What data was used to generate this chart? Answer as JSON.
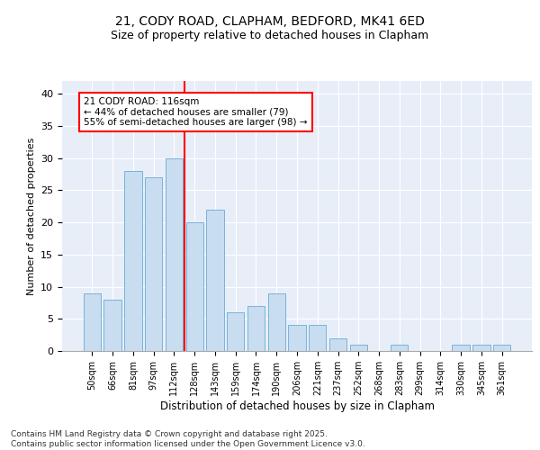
{
  "title1": "21, CODY ROAD, CLAPHAM, BEDFORD, MK41 6ED",
  "title2": "Size of property relative to detached houses in Clapham",
  "xlabel": "Distribution of detached houses by size in Clapham",
  "ylabel": "Number of detached properties",
  "categories": [
    "50sqm",
    "66sqm",
    "81sqm",
    "97sqm",
    "112sqm",
    "128sqm",
    "143sqm",
    "159sqm",
    "174sqm",
    "190sqm",
    "206sqm",
    "221sqm",
    "237sqm",
    "252sqm",
    "268sqm",
    "283sqm",
    "299sqm",
    "314sqm",
    "330sqm",
    "345sqm",
    "361sqm"
  ],
  "values": [
    9,
    8,
    28,
    27,
    30,
    20,
    22,
    6,
    7,
    9,
    4,
    4,
    2,
    1,
    0,
    1,
    0,
    0,
    1,
    1,
    1
  ],
  "bar_color": "#c9ddf0",
  "bar_edge_color": "#6aaad4",
  "vline_x": 4.5,
  "vline_color": "red",
  "annotation_text": "21 CODY ROAD: 116sqm\n← 44% of detached houses are smaller (79)\n55% of semi-detached houses are larger (98) →",
  "annotation_box_color": "white",
  "annotation_box_edge": "red",
  "ylim": [
    0,
    42
  ],
  "yticks": [
    0,
    5,
    10,
    15,
    20,
    25,
    30,
    35,
    40
  ],
  "bg_color": "#e8eef8",
  "footer": "Contains HM Land Registry data © Crown copyright and database right 2025.\nContains public sector information licensed under the Open Government Licence v3.0.",
  "title1_fontsize": 10,
  "title2_fontsize": 9,
  "xlabel_fontsize": 8.5,
  "ylabel_fontsize": 8,
  "tick_fontsize": 7,
  "footer_fontsize": 6.5,
  "annotation_fontsize": 7.5
}
